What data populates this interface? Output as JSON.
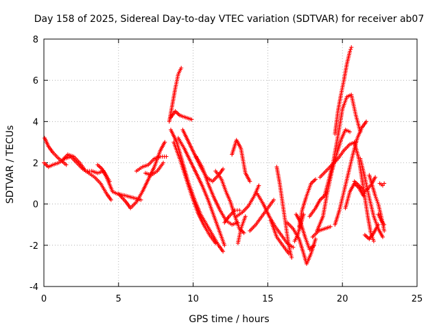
{
  "chart_data": {
    "type": "scatter",
    "title": "Day 158 of 2025, Sidereal Day-to-day VTEC variation (SDTVAR) for receiver ab07",
    "xlabel": "GPS time / hours",
    "ylabel": "SDTVAR / TECUs",
    "xlim": [
      0,
      25
    ],
    "ylim": [
      -4,
      8
    ],
    "xticks": [
      "0",
      "5",
      "10",
      "15",
      "20",
      "25"
    ],
    "yticks": [
      "-4",
      "-2",
      "0",
      "2",
      "4",
      "6",
      "8"
    ],
    "grid": true,
    "marker": "plus",
    "color": "#ff0000",
    "series": [
      {
        "name": "trace-1",
        "points": [
          [
            0.0,
            2.0
          ],
          [
            0.3,
            1.8
          ],
          [
            0.6,
            1.9
          ],
          [
            1.0,
            2.0
          ],
          [
            1.4,
            2.2
          ],
          [
            1.8,
            2.3
          ],
          [
            2.2,
            2.0
          ],
          [
            2.6,
            1.7
          ],
          [
            3.0,
            1.5
          ],
          [
            3.4,
            1.3
          ],
          [
            3.8,
            1.0
          ],
          [
            4.2,
            0.5
          ],
          [
            4.5,
            0.2
          ]
        ]
      },
      {
        "name": "trace-2",
        "points": [
          [
            0.05,
            3.2
          ],
          [
            0.3,
            2.8
          ],
          [
            0.6,
            2.5
          ],
          [
            1.0,
            2.2
          ],
          [
            1.5,
            1.9
          ]
        ]
      },
      {
        "name": "trace-3",
        "points": [
          [
            1.2,
            2.1
          ],
          [
            1.6,
            2.4
          ],
          [
            2.0,
            2.3
          ],
          [
            2.4,
            2.0
          ],
          [
            2.8,
            1.6
          ],
          [
            3.2,
            1.6
          ],
          [
            3.6,
            1.5
          ],
          [
            4.0,
            1.6
          ],
          [
            4.4,
            1.1
          ]
        ]
      },
      {
        "name": "trace-4",
        "points": [
          [
            3.6,
            1.9
          ],
          [
            3.9,
            1.7
          ],
          [
            4.2,
            1.3
          ],
          [
            4.6,
            0.6
          ],
          [
            4.9,
            0.5
          ],
          [
            5.5,
            0.4
          ],
          [
            6.0,
            0.3
          ],
          [
            6.5,
            0.2
          ]
        ]
      },
      {
        "name": "trace-5",
        "points": [
          [
            5.0,
            0.5
          ],
          [
            5.5,
            0.1
          ],
          [
            5.8,
            -0.2
          ],
          [
            6.2,
            0.1
          ],
          [
            6.6,
            0.6
          ],
          [
            7.0,
            1.2
          ],
          [
            7.4,
            1.8
          ],
          [
            7.8,
            2.6
          ],
          [
            8.1,
            3.0
          ]
        ]
      },
      {
        "name": "trace-6",
        "points": [
          [
            6.2,
            1.6
          ],
          [
            6.6,
            1.8
          ],
          [
            7.0,
            1.9
          ],
          [
            7.4,
            2.2
          ],
          [
            7.8,
            2.3
          ],
          [
            8.2,
            2.3
          ]
        ]
      },
      {
        "name": "trace-7",
        "points": [
          [
            6.8,
            1.5
          ],
          [
            7.2,
            1.4
          ],
          [
            7.6,
            1.6
          ],
          [
            8.0,
            2.0
          ]
        ]
      },
      {
        "name": "trace-8",
        "points": [
          [
            8.4,
            4.0
          ],
          [
            8.6,
            4.8
          ],
          [
            8.8,
            5.6
          ],
          [
            9.0,
            6.3
          ],
          [
            9.2,
            6.6
          ]
        ]
      },
      {
        "name": "trace-9",
        "points": [
          [
            8.5,
            4.2
          ],
          [
            8.8,
            4.5
          ],
          [
            9.1,
            4.3
          ],
          [
            9.5,
            4.2
          ],
          [
            9.9,
            4.1
          ]
        ]
      },
      {
        "name": "trace-10",
        "points": [
          [
            8.5,
            3.6
          ],
          [
            8.9,
            3.0
          ],
          [
            9.3,
            2.0
          ],
          [
            9.7,
            1.0
          ],
          [
            10.1,
            0.2
          ],
          [
            10.5,
            -0.5
          ],
          [
            10.9,
            -1.0
          ],
          [
            11.3,
            -1.5
          ],
          [
            11.7,
            -2.0
          ],
          [
            12.0,
            -2.3
          ]
        ]
      },
      {
        "name": "trace-11",
        "points": [
          [
            8.7,
            3.0
          ],
          [
            9.1,
            2.2
          ],
          [
            9.5,
            1.3
          ],
          [
            9.9,
            0.4
          ],
          [
            10.3,
            -0.4
          ],
          [
            10.7,
            -1.0
          ],
          [
            11.1,
            -1.5
          ],
          [
            11.5,
            -1.9
          ]
        ]
      },
      {
        "name": "trace-12",
        "points": [
          [
            9.0,
            3.2
          ],
          [
            9.4,
            2.7
          ],
          [
            9.8,
            2.1
          ],
          [
            10.2,
            1.5
          ],
          [
            10.6,
            0.9
          ],
          [
            11.0,
            0.2
          ],
          [
            11.4,
            -0.6
          ],
          [
            11.8,
            -1.4
          ],
          [
            12.1,
            -2.0
          ]
        ]
      },
      {
        "name": "trace-13",
        "points": [
          [
            9.3,
            3.6
          ],
          [
            9.7,
            3.0
          ],
          [
            10.1,
            2.4
          ],
          [
            10.5,
            1.8
          ],
          [
            10.9,
            1.3
          ],
          [
            11.3,
            1.1
          ],
          [
            11.7,
            1.4
          ],
          [
            12.0,
            1.7
          ]
        ]
      },
      {
        "name": "trace-14",
        "points": [
          [
            10.2,
            2.3
          ],
          [
            10.6,
            1.8
          ],
          [
            11.0,
            1.0
          ],
          [
            11.4,
            0.3
          ],
          [
            11.8,
            -0.3
          ],
          [
            12.2,
            -0.8
          ],
          [
            12.6,
            -1.0
          ],
          [
            13.0,
            -0.9
          ]
        ]
      },
      {
        "name": "trace-15",
        "points": [
          [
            11.5,
            1.6
          ],
          [
            11.9,
            1.2
          ],
          [
            12.2,
            0.6
          ],
          [
            12.5,
            0.1
          ],
          [
            12.8,
            -0.6
          ],
          [
            13.1,
            -1.2
          ],
          [
            13.4,
            -1.4
          ]
        ]
      },
      {
        "name": "trace-16",
        "points": [
          [
            12.6,
            2.4
          ],
          [
            12.9,
            3.1
          ],
          [
            13.2,
            2.7
          ],
          [
            13.5,
            1.5
          ],
          [
            13.8,
            1.1
          ]
        ]
      },
      {
        "name": "trace-17",
        "points": [
          [
            12.9,
            -0.6
          ],
          [
            13.3,
            -0.4
          ],
          [
            13.7,
            -0.1
          ],
          [
            14.1,
            0.4
          ],
          [
            14.4,
            0.9
          ]
        ]
      },
      {
        "name": "trace-18",
        "points": [
          [
            13.8,
            -1.3
          ],
          [
            14.2,
            -1.0
          ],
          [
            14.6,
            -0.6
          ],
          [
            15.0,
            -0.2
          ],
          [
            15.4,
            0.2
          ]
        ]
      },
      {
        "name": "trace-19",
        "points": [
          [
            14.3,
            0.5
          ],
          [
            14.7,
            0.0
          ],
          [
            15.1,
            -0.6
          ],
          [
            15.5,
            -1.1
          ],
          [
            15.9,
            -1.5
          ],
          [
            16.3,
            -1.9
          ],
          [
            16.7,
            -2.1
          ]
        ]
      },
      {
        "name": "trace-20",
        "points": [
          [
            15.6,
            1.8
          ],
          [
            15.8,
            1.0
          ],
          [
            16.0,
            0.0
          ],
          [
            16.2,
            -1.0
          ],
          [
            16.4,
            -2.0
          ],
          [
            16.6,
            -2.6
          ]
        ]
      },
      {
        "name": "trace-21",
        "points": [
          [
            15.2,
            -0.8
          ],
          [
            15.6,
            -1.6
          ],
          [
            16.0,
            -2.0
          ],
          [
            16.4,
            -2.4
          ]
        ]
      },
      {
        "name": "trace-22",
        "points": [
          [
            16.3,
            -0.9
          ],
          [
            16.7,
            -1.2
          ],
          [
            17.1,
            -1.7
          ],
          [
            17.4,
            -2.4
          ],
          [
            17.6,
            -2.9
          ],
          [
            17.9,
            -2.4
          ],
          [
            18.2,
            -1.7
          ]
        ]
      },
      {
        "name": "trace-23",
        "points": [
          [
            16.9,
            -0.5
          ],
          [
            17.2,
            -0.9
          ],
          [
            17.5,
            -1.6
          ],
          [
            17.8,
            -2.2
          ],
          [
            18.1,
            -2.0
          ]
        ]
      },
      {
        "name": "trace-24",
        "points": [
          [
            17.1,
            -1.1
          ],
          [
            17.3,
            -0.3
          ],
          [
            17.6,
            0.4
          ],
          [
            17.9,
            1.0
          ],
          [
            18.2,
            1.2
          ]
        ]
      },
      {
        "name": "trace-25",
        "points": [
          [
            16.8,
            -1.8
          ],
          [
            17.0,
            -1.5
          ],
          [
            17.2,
            -1.0
          ],
          [
            17.4,
            -0.5
          ]
        ]
      },
      {
        "name": "trace-26",
        "points": [
          [
            17.8,
            -0.6
          ],
          [
            18.2,
            -0.2
          ],
          [
            18.5,
            0.2
          ],
          [
            18.8,
            0.4
          ],
          [
            19.0,
            0.6
          ]
        ]
      },
      {
        "name": "trace-27",
        "points": [
          [
            18.0,
            -1.6
          ],
          [
            18.4,
            -1.3
          ],
          [
            18.8,
            -1.2
          ],
          [
            19.2,
            -1.1
          ]
        ]
      },
      {
        "name": "trace-28",
        "points": [
          [
            18.3,
            -1.3
          ],
          [
            18.7,
            -0.6
          ],
          [
            19.0,
            0.6
          ],
          [
            19.3,
            1.6
          ],
          [
            19.6,
            2.4
          ],
          [
            19.9,
            3.1
          ],
          [
            20.2,
            3.6
          ],
          [
            20.5,
            3.5
          ]
        ]
      },
      {
        "name": "trace-29",
        "points": [
          [
            18.8,
            0.4
          ],
          [
            19.1,
            1.2
          ],
          [
            19.4,
            2.1
          ],
          [
            19.7,
            3.3
          ],
          [
            20.0,
            4.6
          ],
          [
            20.3,
            5.2
          ],
          [
            20.6,
            5.3
          ],
          [
            20.9,
            4.3
          ],
          [
            21.2,
            3.5
          ]
        ]
      },
      {
        "name": "trace-30",
        "points": [
          [
            19.5,
            3.4
          ],
          [
            19.7,
            4.5
          ],
          [
            19.9,
            5.3
          ],
          [
            20.1,
            6.0
          ],
          [
            20.3,
            6.8
          ],
          [
            20.5,
            7.4
          ],
          [
            20.6,
            7.6
          ]
        ]
      },
      {
        "name": "trace-31",
        "points": [
          [
            18.5,
            1.3
          ],
          [
            18.9,
            1.6
          ],
          [
            19.3,
            1.9
          ],
          [
            19.7,
            2.2
          ],
          [
            20.1,
            2.6
          ],
          [
            20.5,
            2.9
          ],
          [
            20.9,
            3.0
          ]
        ]
      },
      {
        "name": "trace-32",
        "points": [
          [
            19.5,
            -1.0
          ],
          [
            19.8,
            -0.3
          ],
          [
            20.1,
            0.6
          ],
          [
            20.4,
            1.5
          ],
          [
            20.7,
            2.4
          ],
          [
            21.0,
            3.2
          ],
          [
            21.3,
            3.7
          ],
          [
            21.6,
            4.0
          ]
        ]
      },
      {
        "name": "trace-33",
        "points": [
          [
            20.2,
            -0.2
          ],
          [
            20.5,
            0.6
          ],
          [
            20.8,
            1.0
          ],
          [
            21.1,
            0.8
          ],
          [
            21.4,
            0.4
          ]
        ]
      },
      {
        "name": "trace-34",
        "points": [
          [
            20.8,
            1.1
          ],
          [
            21.1,
            0.9
          ],
          [
            21.5,
            0.6
          ],
          [
            21.9,
            0.9
          ],
          [
            22.2,
            1.3
          ]
        ]
      },
      {
        "name": "trace-35",
        "points": [
          [
            20.8,
            3.0
          ],
          [
            21.1,
            2.2
          ],
          [
            21.4,
            0.8
          ],
          [
            21.7,
            -0.6
          ],
          [
            21.9,
            -1.4
          ],
          [
            22.1,
            -1.8
          ]
        ]
      },
      {
        "name": "trace-36",
        "points": [
          [
            21.2,
            2.2
          ],
          [
            21.5,
            1.3
          ],
          [
            21.8,
            0.3
          ],
          [
            22.1,
            -0.6
          ],
          [
            22.4,
            -1.2
          ],
          [
            22.7,
            -1.6
          ]
        ]
      },
      {
        "name": "trace-37",
        "points": [
          [
            21.8,
            1.4
          ],
          [
            22.0,
            0.9
          ],
          [
            22.2,
            0.4
          ],
          [
            22.4,
            0.0
          ],
          [
            22.6,
            -0.6
          ],
          [
            22.8,
            -1.3
          ]
        ]
      },
      {
        "name": "trace-38",
        "points": [
          [
            22.4,
            -0.5
          ],
          [
            22.6,
            -0.8
          ],
          [
            22.8,
            -1.0
          ]
        ]
      },
      {
        "name": "trace-39",
        "points": [
          [
            21.5,
            -1.5
          ],
          [
            21.8,
            -1.7
          ],
          [
            22.1,
            -1.4
          ],
          [
            22.4,
            -1.0
          ]
        ]
      },
      {
        "name": "trace-40",
        "points": [
          [
            22.5,
            1.0
          ],
          [
            22.7,
            0.9
          ],
          [
            22.8,
            1.0
          ]
        ]
      },
      {
        "name": "trace-41",
        "points": [
          [
            12.1,
            -0.9
          ],
          [
            12.4,
            -0.6
          ],
          [
            12.8,
            -0.3
          ],
          [
            13.1,
            -0.3
          ]
        ]
      },
      {
        "name": "trace-42",
        "points": [
          [
            13.0,
            -1.9
          ],
          [
            13.2,
            -1.2
          ],
          [
            13.5,
            -0.6
          ]
        ]
      }
    ]
  }
}
